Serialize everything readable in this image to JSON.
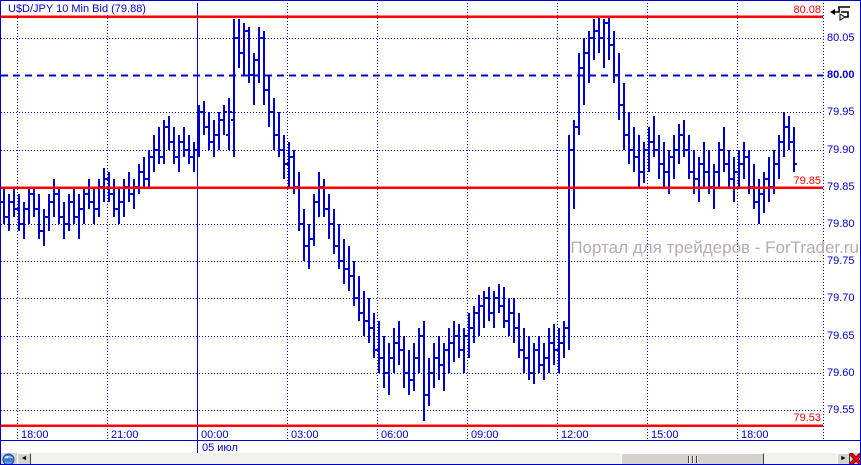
{
  "window": {
    "title": "U$D/JPY 10 Min Bid (79.88)"
  },
  "watermark": "Портал для трейдеров - ForTrader.ru",
  "colors": {
    "bars": "#0000cd",
    "grid": "#0000cc",
    "red_line": "#ff0000",
    "title": "#0000cd",
    "watermark": "#b6acac",
    "scrollbar_bg": "#d6d3ce"
  },
  "icons": {
    "top_right": "trend-cursor-icon",
    "bottom_left": "globe-icon",
    "scroll_left_glyph": "◄",
    "scroll_right_glyph": "►",
    "close_glyph": "✕"
  },
  "x_axis": {
    "ticks": [
      "18:00",
      "21:00",
      "00:00",
      "03:00",
      "06:00",
      "09:00",
      "12:00",
      "15:00",
      "18:00"
    ],
    "date_label": "05 июл",
    "date_line_index": 2
  },
  "y_axis": {
    "ticks": [
      {
        "label": "80.05",
        "value": 80.05,
        "bold": false
      },
      {
        "label": "80.00",
        "value": 80.0,
        "bold": true
      },
      {
        "label": "79.95",
        "value": 79.95,
        "bold": false
      },
      {
        "label": "79.90",
        "value": 79.9,
        "bold": false
      },
      {
        "label": "79.85",
        "value": 79.85,
        "bold": false
      },
      {
        "label": "79.80",
        "value": 79.8,
        "bold": false
      },
      {
        "label": "79.75",
        "value": 79.75,
        "bold": false
      },
      {
        "label": "79.70",
        "value": 79.7,
        "bold": false
      },
      {
        "label": "79.65",
        "value": 79.65,
        "bold": false
      },
      {
        "label": "79.60",
        "value": 79.6,
        "bold": false
      },
      {
        "label": "79.55",
        "value": 79.55,
        "bold": false
      }
    ],
    "red_labels": {
      "top": "80.08",
      "mid": "79.85",
      "bottom": "79.53"
    }
  },
  "chart_data": {
    "type": "ohlc-bar",
    "title": "U$D/JPY 10 Min Bid (79.88)",
    "interval_minutes": 10,
    "price_type": "Bid",
    "last_price": 79.88,
    "start_time": "17:30",
    "x_tick_times": [
      "18:00",
      "21:00",
      "00:00",
      "03:00",
      "06:00",
      "09:00",
      "12:00",
      "15:00",
      "18:00"
    ],
    "y_range": [
      79.5,
      80.1
    ],
    "red_levels": {
      "high": 80.08,
      "mid": 79.85,
      "low": 79.53
    },
    "dashed_level": 80.0,
    "bars": [
      [
        79.83,
        79.85,
        79.8,
        79.81
      ],
      [
        79.81,
        79.84,
        79.79,
        79.83
      ],
      [
        79.83,
        79.85,
        79.81,
        79.82
      ],
      [
        79.82,
        79.84,
        79.79,
        79.8
      ],
      [
        79.8,
        79.83,
        79.78,
        79.82
      ],
      [
        79.82,
        79.85,
        79.8,
        79.84
      ],
      [
        79.84,
        79.85,
        79.81,
        79.82
      ],
      [
        79.82,
        79.84,
        79.78,
        79.79
      ],
      [
        79.79,
        79.82,
        79.77,
        79.81
      ],
      [
        79.81,
        79.84,
        79.79,
        79.83
      ],
      [
        79.83,
        79.86,
        79.81,
        79.84
      ],
      [
        79.84,
        79.85,
        79.8,
        79.81
      ],
      [
        79.81,
        79.83,
        79.78,
        79.8
      ],
      [
        79.8,
        79.84,
        79.79,
        79.83
      ],
      [
        79.83,
        79.85,
        79.8,
        79.81
      ],
      [
        79.81,
        79.84,
        79.78,
        79.82
      ],
      [
        79.82,
        79.85,
        79.8,
        79.84
      ],
      [
        79.84,
        79.86,
        79.82,
        79.83
      ],
      [
        79.83,
        79.85,
        79.8,
        79.82
      ],
      [
        79.82,
        79.86,
        79.81,
        79.85
      ],
      [
        79.85,
        79.875,
        79.83,
        79.86
      ],
      [
        79.86,
        79.87,
        79.83,
        79.84
      ],
      [
        79.84,
        79.86,
        79.81,
        79.82
      ],
      [
        79.82,
        79.85,
        79.8,
        79.83
      ],
      [
        79.83,
        79.86,
        79.81,
        79.85
      ],
      [
        79.85,
        79.87,
        79.83,
        79.84
      ],
      [
        79.84,
        79.86,
        79.82,
        79.85
      ],
      [
        79.85,
        79.88,
        79.84,
        79.87
      ],
      [
        79.87,
        79.89,
        79.85,
        79.86
      ],
      [
        79.86,
        79.9,
        79.85,
        79.89
      ],
      [
        79.89,
        79.92,
        79.87,
        79.9
      ],
      [
        79.9,
        79.93,
        79.88,
        79.89
      ],
      [
        79.89,
        79.94,
        79.88,
        79.93
      ],
      [
        79.93,
        79.945,
        79.9,
        79.91
      ],
      [
        79.91,
        79.93,
        79.88,
        79.89
      ],
      [
        79.89,
        79.92,
        79.87,
        79.91
      ],
      [
        79.91,
        79.93,
        79.89,
        79.9
      ],
      [
        79.9,
        79.92,
        79.88,
        79.89
      ],
      [
        79.89,
        79.91,
        79.87,
        79.9
      ],
      [
        79.9,
        79.96,
        79.89,
        79.95
      ],
      [
        79.95,
        79.965,
        79.92,
        79.93
      ],
      [
        79.93,
        79.95,
        79.9,
        79.91
      ],
      [
        79.91,
        79.94,
        79.89,
        79.92
      ],
      [
        79.92,
        79.95,
        79.9,
        79.94
      ],
      [
        79.94,
        79.96,
        79.92,
        79.95
      ],
      [
        79.92,
        79.97,
        79.9,
        79.95
      ],
      [
        79.94,
        80.075,
        79.89,
        80.05
      ],
      [
        80.05,
        80.075,
        80.01,
        80.03
      ],
      [
        80.03,
        80.07,
        80.0,
        80.06
      ],
      [
        80.06,
        80.065,
        79.99,
        80.0
      ],
      [
        80.0,
        80.03,
        79.96,
        80.02
      ],
      [
        80.02,
        80.065,
        79.99,
        80.05
      ],
      [
        80.05,
        80.06,
        79.96,
        79.98
      ],
      [
        79.98,
        80.0,
        79.93,
        79.95
      ],
      [
        79.95,
        79.97,
        79.9,
        79.92
      ],
      [
        79.92,
        79.95,
        79.89,
        79.9
      ],
      [
        79.9,
        79.92,
        79.86,
        79.88
      ],
      [
        79.88,
        79.91,
        79.85,
        79.89
      ],
      [
        79.89,
        79.9,
        79.84,
        79.85
      ],
      [
        79.85,
        79.87,
        79.79,
        79.8
      ],
      [
        79.8,
        79.82,
        79.75,
        79.77
      ],
      [
        79.77,
        79.8,
        79.74,
        79.78
      ],
      [
        79.78,
        79.84,
        79.77,
        79.83
      ],
      [
        79.83,
        79.87,
        79.81,
        79.85
      ],
      [
        79.85,
        79.86,
        79.81,
        79.82
      ],
      [
        79.82,
        79.84,
        79.78,
        79.8
      ],
      [
        79.8,
        79.82,
        79.76,
        79.77
      ],
      [
        79.77,
        79.8,
        79.74,
        79.75
      ],
      [
        79.75,
        79.78,
        79.72,
        79.74
      ],
      [
        79.74,
        79.77,
        79.71,
        79.73
      ],
      [
        79.73,
        79.75,
        79.69,
        79.7
      ],
      [
        79.7,
        79.73,
        79.67,
        79.68
      ],
      [
        79.68,
        79.71,
        79.65,
        79.67
      ],
      [
        79.67,
        79.7,
        79.64,
        79.66
      ],
      [
        79.66,
        79.68,
        79.62,
        79.63
      ],
      [
        79.63,
        79.67,
        79.6,
        79.62
      ],
      [
        79.62,
        79.65,
        79.58,
        79.6
      ],
      [
        79.6,
        79.64,
        79.57,
        79.62
      ],
      [
        79.62,
        79.66,
        79.6,
        79.64
      ],
      [
        79.64,
        79.67,
        79.61,
        79.63
      ],
      [
        79.63,
        79.65,
        79.58,
        79.6
      ],
      [
        79.6,
        79.63,
        79.57,
        79.59
      ],
      [
        79.59,
        79.64,
        79.575,
        79.62
      ],
      [
        79.62,
        79.66,
        79.6,
        79.65
      ],
      [
        79.65,
        79.67,
        79.535,
        79.57
      ],
      [
        79.57,
        79.62,
        79.555,
        79.6
      ],
      [
        79.6,
        79.64,
        79.58,
        79.62
      ],
      [
        79.62,
        79.65,
        79.59,
        79.61
      ],
      [
        79.61,
        79.64,
        79.575,
        79.63
      ],
      [
        79.63,
        79.66,
        79.6,
        79.64
      ],
      [
        79.64,
        79.67,
        79.615,
        79.65
      ],
      [
        79.65,
        79.665,
        79.62,
        79.63
      ],
      [
        79.63,
        79.66,
        79.6,
        79.65
      ],
      [
        79.65,
        79.68,
        79.62,
        79.66
      ],
      [
        79.66,
        79.69,
        79.64,
        79.68
      ],
      [
        79.68,
        79.705,
        79.65,
        79.69
      ],
      [
        79.69,
        79.71,
        79.66,
        79.7
      ],
      [
        79.7,
        79.715,
        79.67,
        79.68
      ],
      [
        79.68,
        79.71,
        79.66,
        79.7
      ],
      [
        79.7,
        79.72,
        79.68,
        79.69
      ],
      [
        79.69,
        79.715,
        79.66,
        79.67
      ],
      [
        79.67,
        79.7,
        79.65,
        79.68
      ],
      [
        79.68,
        79.7,
        79.64,
        79.66
      ],
      [
        79.66,
        79.68,
        79.62,
        79.63
      ],
      [
        79.63,
        79.66,
        79.6,
        79.62
      ],
      [
        79.62,
        79.65,
        79.59,
        79.6
      ],
      [
        79.6,
        79.64,
        79.585,
        79.63
      ],
      [
        79.63,
        79.65,
        79.6,
        79.61
      ],
      [
        79.61,
        79.64,
        79.59,
        79.62
      ],
      [
        79.62,
        79.66,
        79.6,
        79.64
      ],
      [
        79.64,
        79.665,
        79.61,
        79.63
      ],
      [
        79.63,
        79.66,
        79.6,
        79.64
      ],
      [
        79.64,
        79.67,
        79.62,
        79.66
      ],
      [
        79.66,
        79.92,
        79.63,
        79.9
      ],
      [
        79.9,
        79.94,
        79.82,
        79.93
      ],
      [
        79.93,
        80.03,
        79.92,
        80.01
      ],
      [
        80.01,
        80.05,
        79.96,
        80.03
      ],
      [
        80.03,
        80.06,
        79.99,
        80.05
      ],
      [
        80.05,
        80.075,
        80.02,
        80.06
      ],
      [
        80.06,
        80.08,
        80.03,
        80.05
      ],
      [
        80.05,
        80.075,
        80.01,
        80.07
      ],
      [
        80.07,
        80.08,
        80.02,
        80.04
      ],
      [
        80.04,
        80.06,
        79.99,
        80.0
      ],
      [
        80.0,
        80.03,
        79.94,
        79.96
      ],
      [
        79.96,
        79.99,
        79.9,
        79.92
      ],
      [
        79.92,
        79.95,
        79.88,
        79.9
      ],
      [
        79.9,
        79.93,
        79.87,
        79.89
      ],
      [
        79.89,
        79.92,
        79.85,
        79.87
      ],
      [
        79.87,
        79.91,
        79.855,
        79.9
      ],
      [
        79.9,
        79.93,
        79.87,
        79.91
      ],
      [
        79.91,
        79.945,
        79.89,
        79.9
      ],
      [
        79.9,
        79.92,
        79.86,
        79.88
      ],
      [
        79.88,
        79.91,
        79.85,
        79.87
      ],
      [
        79.87,
        79.9,
        79.84,
        79.89
      ],
      [
        79.89,
        79.92,
        79.86,
        79.9
      ],
      [
        79.9,
        79.935,
        79.88,
        79.92
      ],
      [
        79.92,
        79.94,
        79.89,
        79.9
      ],
      [
        79.9,
        79.92,
        79.86,
        79.87
      ],
      [
        79.87,
        79.9,
        79.84,
        79.86
      ],
      [
        79.86,
        79.89,
        79.83,
        79.88
      ],
      [
        79.88,
        79.91,
        79.85,
        79.87
      ],
      [
        79.87,
        79.9,
        79.84,
        79.85
      ],
      [
        79.85,
        79.88,
        79.82,
        79.87
      ],
      [
        79.87,
        79.91,
        79.85,
        79.9
      ],
      [
        79.9,
        79.93,
        79.87,
        79.88
      ],
      [
        79.88,
        79.9,
        79.85,
        79.86
      ],
      [
        79.86,
        79.89,
        79.83,
        79.87
      ],
      [
        79.87,
        79.9,
        79.85,
        79.88
      ],
      [
        79.88,
        79.91,
        79.86,
        79.89
      ],
      [
        79.89,
        79.9,
        79.84,
        79.85
      ],
      [
        79.85,
        79.88,
        79.82,
        79.83
      ],
      [
        79.83,
        79.86,
        79.8,
        79.84
      ],
      [
        79.84,
        79.87,
        79.815,
        79.86
      ],
      [
        79.86,
        79.89,
        79.83,
        79.85
      ],
      [
        79.85,
        79.9,
        79.84,
        79.88
      ],
      [
        79.88,
        79.92,
        79.86,
        79.91
      ],
      [
        79.91,
        79.95,
        79.89,
        79.93
      ],
      [
        79.93,
        79.945,
        79.9,
        79.91
      ],
      [
        79.91,
        79.93,
        79.87,
        79.88
      ]
    ]
  }
}
